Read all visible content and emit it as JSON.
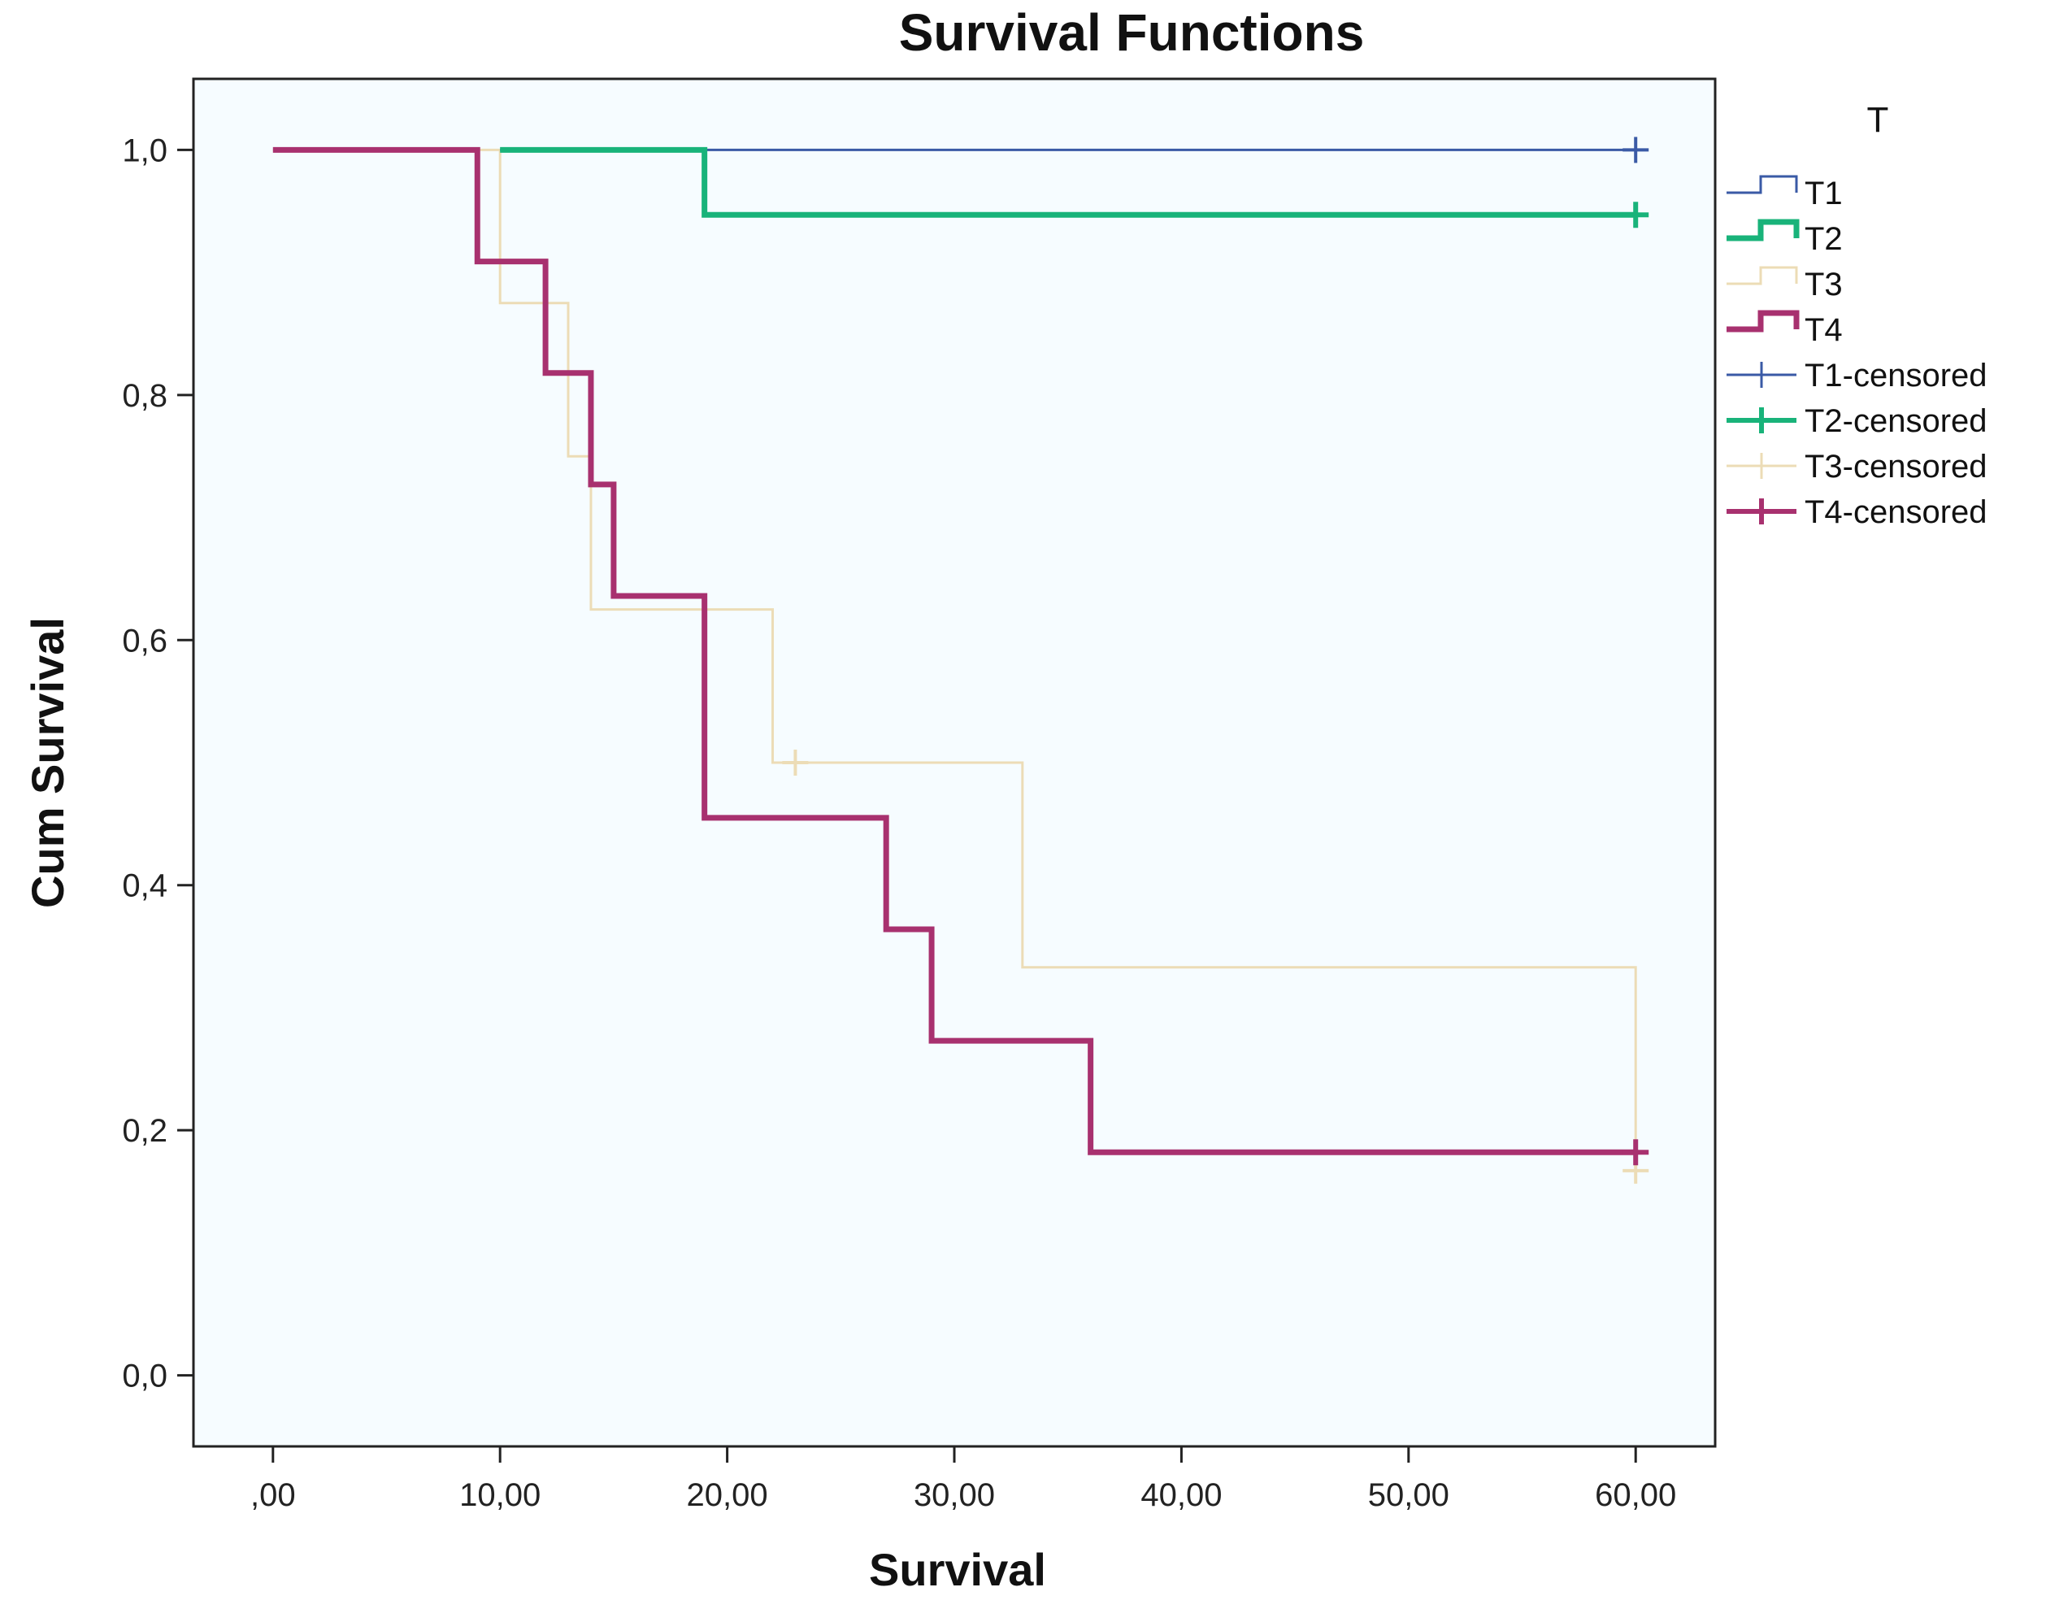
{
  "chart_data": {
    "type": "line",
    "subtype": "kaplan-meier step",
    "title": "Survival Functions",
    "xlabel": "Survival",
    "ylabel": "Cum Survival",
    "xlim": [
      -3.5,
      63.5
    ],
    "ylim": [
      -0.058,
      1.058
    ],
    "x_ticks": [
      0,
      10,
      20,
      30,
      40,
      50,
      60
    ],
    "x_tick_labels": [
      ",00",
      "10,00",
      "20,00",
      "30,00",
      "40,00",
      "50,00",
      "60,00"
    ],
    "y_ticks": [
      0,
      0.2,
      0.4,
      0.6,
      0.8,
      1.0
    ],
    "y_tick_labels": [
      "0,0",
      "0,2",
      "0,4",
      "0,6",
      "0,8",
      "1,0"
    ],
    "grid": false,
    "plot_background": "#f6fcff",
    "legend": {
      "title": "T",
      "position": "right",
      "entries": [
        "T1",
        "T2",
        "T3",
        "T4",
        "T1-censored",
        "T2-censored",
        "T3-censored",
        "T4-censored"
      ]
    },
    "series": [
      {
        "name": "T1",
        "color": "#3a5aa6",
        "stroke_weight": "thin",
        "steps": [
          [
            10,
            1.0
          ],
          [
            60,
            1.0
          ]
        ],
        "censored": [
          [
            60,
            1.0
          ]
        ]
      },
      {
        "name": "T2",
        "color": "#19b37a",
        "stroke_weight": "bold",
        "steps": [
          [
            10,
            1.0
          ],
          [
            19,
            0.947
          ],
          [
            60,
            0.947
          ]
        ],
        "censored": [
          [
            60,
            0.947
          ]
        ]
      },
      {
        "name": "T3",
        "color": "#ecdcb6",
        "stroke_weight": "thin",
        "steps": [
          [
            0,
            1.0
          ],
          [
            10,
            0.875
          ],
          [
            13,
            0.75
          ],
          [
            14,
            0.625
          ],
          [
            22,
            0.5
          ],
          [
            33,
            0.333
          ],
          [
            60,
            0.167
          ]
        ],
        "censored": [
          [
            23,
            0.5
          ],
          [
            60,
            0.167
          ]
        ]
      },
      {
        "name": "T4",
        "color": "#a8316f",
        "stroke_weight": "bold",
        "steps": [
          [
            0,
            1.0
          ],
          [
            9,
            0.909
          ],
          [
            12,
            0.818
          ],
          [
            14,
            0.727
          ],
          [
            15,
            0.636
          ],
          [
            19,
            0.455
          ],
          [
            27,
            0.364
          ],
          [
            29,
            0.273
          ],
          [
            36,
            0.182
          ],
          [
            60,
            0.182
          ]
        ],
        "censored": [
          [
            60,
            0.182
          ]
        ]
      }
    ]
  }
}
